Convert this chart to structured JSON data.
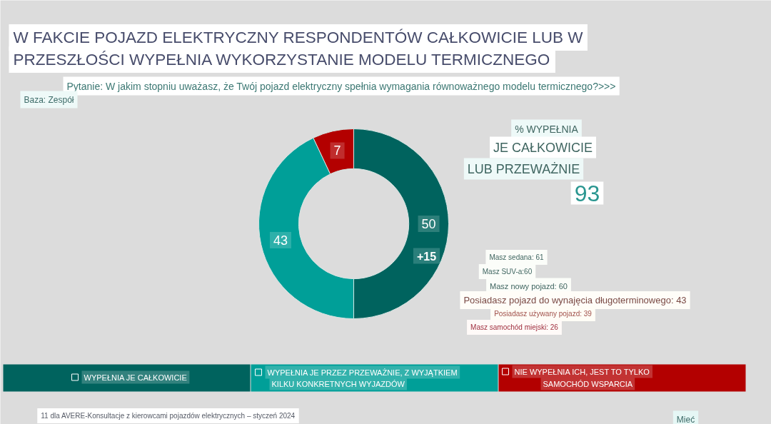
{
  "chart_data": {
    "type": "donut",
    "title": "W FAKCIE POJAZD ELEKTRYCZNY RESPONDENTÓW CAŁKOWICIE LUB W\nPRZESZŁOŚCI WYPEŁNIA WYKORZYSTANIE MODELU TERMICZNEGO",
    "subtitle": "Pytanie: W jakim stopniu uważasz, że Twój pojazd elektryczny spełnia wymagania równoważnego modelu termicznego?>>>",
    "categories": [
      "WYPEŁNIA JE CAŁKOWICIE",
      "WYPEŁNIA JE PRZEZ PRZEWAŻNIE, Z WYJĄTKIEM\nKILKU KONKRETNYCH WYJAZDÓW",
      "NIE WYPEŁNIA ICH, JEST TO TYLKO\nSAMOCHÓD WSPARCIA"
    ],
    "values": [
      50,
      43,
      7
    ],
    "colors": [
      "#00635e",
      "#009f98",
      "#b30000"
    ],
    "data_labels": true,
    "legend": "bottom",
    "annotations": [
      "Baza: Zespół",
      "% WYPEŁNIA",
      "JE CAŁKOWICIE",
      "LUB PRZEWAŻNIE",
      "93",
      "+15",
      "Masz sedana: 61",
      "Masz SUV-a:60",
      "Masz nowy pojazd: 60",
      "Posiadasz pojazd do wynajęcia długoterminowego: 43",
      "Posiadasz używany pojazd: 39",
      "Masz samochód miejski: 26",
      "11 dla AVERE-Konsultacje z kierowcami pojazdów elektrycznych – styczeń 2024",
      "Mieć"
    ]
  }
}
